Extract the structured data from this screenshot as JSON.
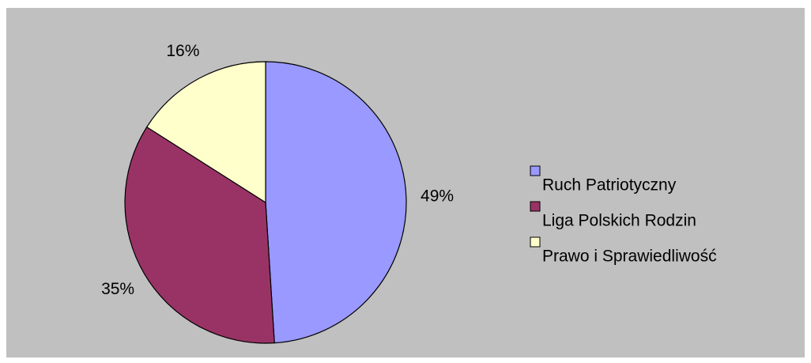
{
  "chart_data": {
    "type": "pie",
    "categories": [
      "Ruch Patriotyczny",
      "Liga Polskich Rodzin",
      "Prawo i Sprawiedliwość"
    ],
    "values": [
      49,
      35,
      16
    ],
    "value_labels": [
      "49%",
      "35%",
      "16%"
    ],
    "colors": [
      "#9999ff",
      "#993366",
      "#ffffcc"
    ],
    "legend": "right"
  }
}
